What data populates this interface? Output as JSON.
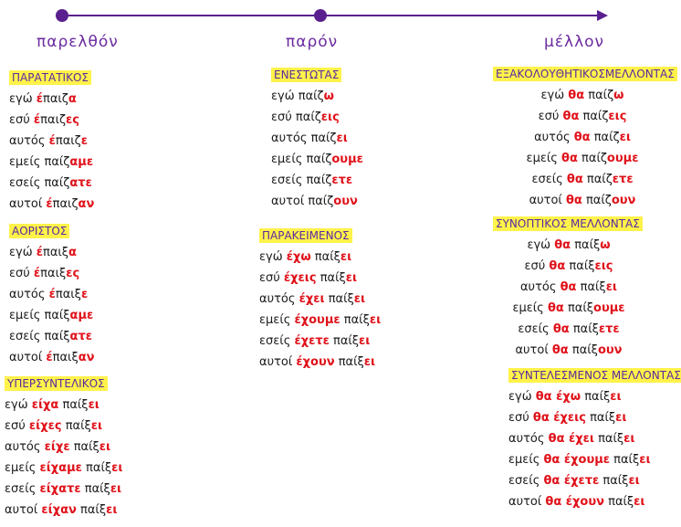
{
  "timeline": {
    "past": "παρελθόν",
    "present": "παρόν",
    "future": "μέλλον",
    "line_color": "#5a1f8f",
    "arrow_icon": "arrow-right"
  },
  "colors": {
    "ending": "#e0121a",
    "tense_bg": "#fff24a",
    "tense_text": "#5a2aa0",
    "era_text": "#6a2aa0"
  },
  "tenses": [
    {
      "key": "paratatikos",
      "title": "ΠΑΡΑΤΑΤΙΚΟΣ",
      "rows": [
        [
          "εγώ ",
          "έ",
          "παιζ",
          "α"
        ],
        [
          "εσύ ",
          "έ",
          "παιζ",
          "ες"
        ],
        [
          "αυτός ",
          "έ",
          "παιζ",
          "ε"
        ],
        [
          "εμείς ",
          "",
          "παίζ",
          "αμε"
        ],
        [
          "εσείς ",
          "",
          "παίζ",
          "ατε"
        ],
        [
          "αυτοί ",
          "έ",
          "παιζ",
          "αν"
        ]
      ]
    },
    {
      "key": "aoristos",
      "title": "ΑΟΡΙΣΤΟΣ",
      "rows": [
        [
          "εγώ ",
          "έ",
          "παιξ",
          "α"
        ],
        [
          "εσύ ",
          "έ",
          "παιξ",
          "ες"
        ],
        [
          "αυτός ",
          "έ",
          "παιξ",
          "ε"
        ],
        [
          "εμείς ",
          "",
          "παίξ",
          "αμε"
        ],
        [
          "εσείς ",
          "",
          "παίξ",
          "ατε"
        ],
        [
          "αυτοί ",
          "έ",
          "παιξ",
          "αν"
        ]
      ]
    },
    {
      "key": "ypersyntelikos",
      "title": "ΥΠΕΡΣΥΝΤΕΛΙΚΟΣ",
      "rows": [
        [
          "εγώ ",
          "είχα",
          " παίξ",
          "ει"
        ],
        [
          "εσύ  ",
          "είχες",
          " παίξ",
          "ει"
        ],
        [
          "αυτός ",
          "είχε",
          " παίξ",
          "ει"
        ],
        [
          "εμείς ",
          "είχαμε",
          " παίξ",
          "ει"
        ],
        [
          "εσείς ",
          "είχατε",
          " παίξ",
          "ει"
        ],
        [
          "αυτοί ",
          "είχαν",
          " παίξ",
          "ει"
        ]
      ]
    },
    {
      "key": "enestotas",
      "title": "ΕΝΕΣΤΩΤΑΣ",
      "rows": [
        [
          "εγώ ",
          "",
          "παίζ",
          "ω"
        ],
        [
          "εσύ ",
          "",
          "παίζ",
          "εις"
        ],
        [
          "αυτός ",
          "",
          "παίζ",
          "ει"
        ],
        [
          "εμείς ",
          "",
          "παίζ",
          "ουμε"
        ],
        [
          "εσείς ",
          "",
          "παίζ",
          "ετε"
        ],
        [
          "αυτοί ",
          "",
          "παίζ",
          "ουν"
        ]
      ]
    },
    {
      "key": "parakeimenos",
      "title": "ΠΑΡΑΚΕΙΜΕΝΟΣ",
      "rows": [
        [
          "εγώ ",
          "έχω",
          " παίξ",
          "ει"
        ],
        [
          "εσύ  ",
          "έχεις",
          " παίξ",
          "ει"
        ],
        [
          "αυτός ",
          "έχει",
          " παίξ",
          "ει"
        ],
        [
          "εμείς ",
          "έχουμε",
          " παίξ",
          "ει"
        ],
        [
          "εσείς ",
          "έχετε",
          " παίξ",
          "ει"
        ],
        [
          "αυτοί ",
          "έχουν",
          " παίξ",
          "ει"
        ]
      ]
    },
    {
      "key": "exakolouthitikos",
      "title": "ΕΞΑΚΟΛΟΥΘΗΤΙΚΟΣΜΕΛΛΟΝΤΑΣ",
      "rows": [
        [
          "εγώ ",
          "θα",
          " παίζ",
          "ω"
        ],
        [
          "εσύ ",
          "θα",
          " παίζ",
          "εις"
        ],
        [
          "αυτός ",
          "θα",
          " παίζ",
          "ει"
        ],
        [
          "εμείς ",
          "θα",
          " παίζ",
          "ουμε"
        ],
        [
          "εσείς ",
          "θα",
          " παίζ",
          "ετε"
        ],
        [
          "αυτοί ",
          "θα",
          " παίζ",
          "ουν"
        ]
      ]
    },
    {
      "key": "synoptikos",
      "title": "ΣΥΝΟΠΤΙΚΟΣ  ΜΕΛΛΟΝΤΑΣ",
      "rows": [
        [
          "εγώ ",
          "θα",
          " παίξ",
          "ω"
        ],
        [
          "εσύ ",
          "θα",
          " παίξ",
          "εις"
        ],
        [
          "αυτός ",
          "θα",
          " παίξ",
          "ει"
        ],
        [
          "εμείς ",
          "θα",
          " παίξ",
          "ουμε"
        ],
        [
          "εσείς ",
          "θα",
          " παίξ",
          "ετε"
        ],
        [
          "αυτοί ",
          "θα",
          " παίξ",
          "ουν"
        ]
      ]
    },
    {
      "key": "syntelesmenos",
      "title": "ΣΥΝΤΕΛΕΣΜΕΝΟΣ ΜΕΛΛΟΝΤΑΣ",
      "rows": [
        [
          "εγώ ",
          "θα έχω",
          " παίξ",
          "ει"
        ],
        [
          "εσύ  ",
          "θα έχεις",
          " παίξ",
          "ει"
        ],
        [
          "αυτός ",
          "θα έχει",
          " παίξ",
          "ει"
        ],
        [
          "εμείς ",
          "θα έχουμε",
          " παίξ",
          "ει"
        ],
        [
          "εσείς ",
          "θα έχετε",
          " παίξ",
          "ει"
        ],
        [
          "αυτοί ",
          "θα έχουν",
          " παίξ",
          "ει"
        ]
      ]
    }
  ]
}
